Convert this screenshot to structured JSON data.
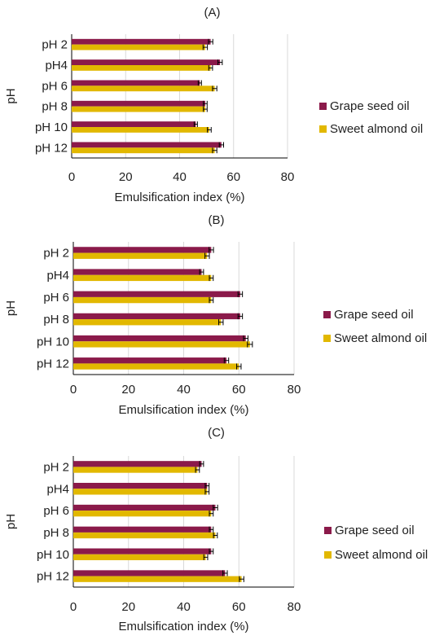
{
  "colors": {
    "grape": "#8b1a4a",
    "almond": "#e2b800",
    "grid": "#d9d9d9",
    "axis": "#000000"
  },
  "chart_data": [
    {
      "type": "bar",
      "orientation": "horizontal",
      "title": "(A)",
      "xlabel": "Emulsification index (%)",
      "ylabel": "pH",
      "categories": [
        "pH 2",
        "pH4",
        "pH 6",
        "pH 8",
        "pH 10",
        "pH 12"
      ],
      "xlim": [
        0,
        80
      ],
      "xticks": [
        "0",
        "20",
        "40",
        "60",
        "80"
      ],
      "grid": "vertical",
      "legend_position": "right",
      "series": [
        {
          "name": "Grape seed oil",
          "values": [
            51.5,
            55,
            47.5,
            49.5,
            46,
            55.5
          ],
          "errors": [
            0.8,
            0.8,
            0.6,
            0.7,
            0.6,
            0.8
          ]
        },
        {
          "name": "Sweet almond oil",
          "values": [
            49.5,
            51.5,
            53,
            49.5,
            51,
            53
          ],
          "errors": [
            0.8,
            0.7,
            0.8,
            0.7,
            0.7,
            0.8
          ]
        }
      ]
    },
    {
      "type": "bar",
      "orientation": "horizontal",
      "title": "(B)",
      "xlabel": "Emulsification index (%)",
      "ylabel": "pH",
      "categories": [
        "pH 2",
        "pH4",
        "pH 6",
        "pH 8",
        "pH 10",
        "pH 12"
      ],
      "xlim": [
        0,
        80
      ],
      "xticks": [
        "0",
        "20",
        "40",
        "60",
        "80"
      ],
      "grid": "vertical",
      "legend_position": "right",
      "series": [
        {
          "name": "Grape seed oil",
          "values": [
            50,
            46.5,
            60.5,
            60.5,
            62.5,
            55.5
          ],
          "errors": [
            0.8,
            0.7,
            0.8,
            0.8,
            0.8,
            0.8
          ]
        },
        {
          "name": "Sweet almond oil",
          "values": [
            48.5,
            50,
            50,
            53.5,
            64,
            60
          ],
          "errors": [
            0.8,
            0.7,
            0.7,
            0.8,
            0.9,
            0.8
          ]
        }
      ]
    },
    {
      "type": "bar",
      "orientation": "horizontal",
      "title": "(C)",
      "xlabel": "Emulsification index (%)",
      "ylabel": "pH",
      "categories": [
        "pH 2",
        "pH4",
        "pH 6",
        "pH 8",
        "pH 10",
        "pH 12"
      ],
      "xlim": [
        0,
        80
      ],
      "xticks": [
        "0",
        "20",
        "40",
        "60",
        "80"
      ],
      "grid": "vertical",
      "legend_position": "right",
      "series": [
        {
          "name": "Grape seed oil",
          "values": [
            46.5,
            48.5,
            51.5,
            50,
            50,
            55
          ],
          "errors": [
            0.7,
            0.7,
            0.8,
            0.7,
            0.7,
            0.8
          ]
        },
        {
          "name": "Sweet almond oil",
          "values": [
            45,
            48.5,
            50,
            51.5,
            48,
            61
          ],
          "errors": [
            0.7,
            0.7,
            0.7,
            0.7,
            0.7,
            0.8
          ]
        }
      ]
    }
  ]
}
